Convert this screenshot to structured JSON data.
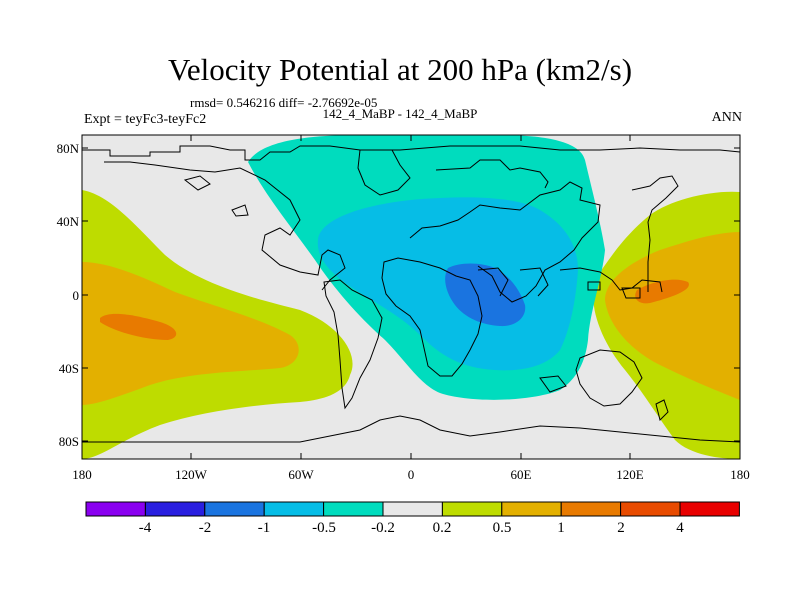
{
  "title": "Velocity Potential at 200 hPa (km2/s)",
  "rmsd_line": "rmsd= 0.546216 diff= -2.76692e-05",
  "experiment": "Expt = teyFc3-teyFc2",
  "period": "142_4_MaBP - 142_4_MaBP",
  "season": "ANN",
  "lat_labels": [
    "80N",
    "40N",
    "0",
    "40S",
    "80S"
  ],
  "lon_labels": [
    "180",
    "120W",
    "60W",
    "0",
    "60E",
    "120E",
    "180"
  ],
  "colorbar": {
    "labels": [
      "-4",
      "-2",
      "-1",
      "-0.5",
      "-0.2",
      "0.2",
      "0.5",
      "1",
      "2",
      "4"
    ],
    "colors": [
      "#8a00f0",
      "#2a1fe0",
      "#1a74e0",
      "#06bde6",
      "#00dcbe",
      "#e8e8e8",
      "#bedc00",
      "#e3b000",
      "#e87a00",
      "#e84b00",
      "#e80000"
    ]
  },
  "field_colors": {
    "neutral": "#e8e8e8",
    "pos_02_05": "#bedc00",
    "pos_05_1": "#e3b000",
    "pos_1_2": "#e87a00",
    "neg_02_05": "#00dcbe",
    "neg_05_1": "#06bde6",
    "neg_1_2": "#1a74e0"
  }
}
